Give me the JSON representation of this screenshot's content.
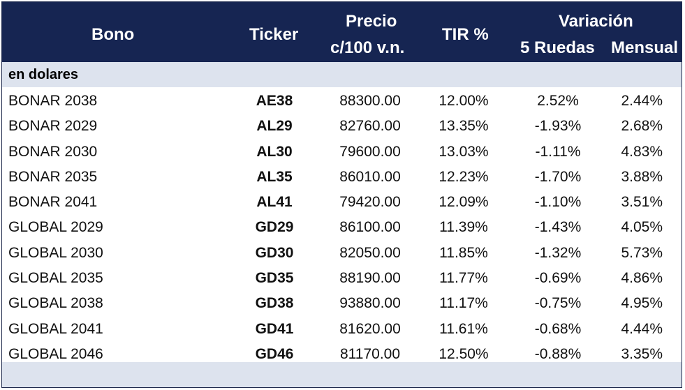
{
  "header": {
    "bono": "Bono",
    "ticker": "Ticker",
    "precio_line1": "Precio",
    "precio_line2": "c/100 v.n.",
    "tir": "TIR %",
    "variacion": "Variación",
    "ruedas": "5 Ruedas",
    "mensual": "Mensual"
  },
  "section_label": "en dolares",
  "rows": [
    {
      "bono": "BONAR 2038",
      "ticker": "AE38",
      "precio": "88300.00",
      "tir": "12.00%",
      "ruedas": "2.52%",
      "mensual": "2.44%"
    },
    {
      "bono": "BONAR 2029",
      "ticker": "AL29",
      "precio": "82760.00",
      "tir": "13.35%",
      "ruedas": "-1.93%",
      "mensual": "2.68%"
    },
    {
      "bono": "BONAR 2030",
      "ticker": "AL30",
      "precio": "79600.00",
      "tir": "13.03%",
      "ruedas": "-1.11%",
      "mensual": "4.83%"
    },
    {
      "bono": "BONAR 2035",
      "ticker": "AL35",
      "precio": "86010.00",
      "tir": "12.23%",
      "ruedas": "-1.70%",
      "mensual": "3.88%"
    },
    {
      "bono": "BONAR 2041",
      "ticker": "AL41",
      "precio": "79420.00",
      "tir": "12.09%",
      "ruedas": "-1.10%",
      "mensual": "3.51%"
    },
    {
      "bono": "GLOBAL 2029",
      "ticker": "GD29",
      "precio": "86100.00",
      "tir": "11.39%",
      "ruedas": "-1.43%",
      "mensual": "4.05%"
    },
    {
      "bono": "GLOBAL 2030",
      "ticker": "GD30",
      "precio": "82050.00",
      "tir": "11.85%",
      "ruedas": "-1.32%",
      "mensual": "5.73%"
    },
    {
      "bono": "GLOBAL 2035",
      "ticker": "GD35",
      "precio": "88190.00",
      "tir": "11.77%",
      "ruedas": "-0.69%",
      "mensual": "4.86%"
    },
    {
      "bono": "GLOBAL 2038",
      "ticker": "GD38",
      "precio": "93880.00",
      "tir": "11.17%",
      "ruedas": "-0.75%",
      "mensual": "4.95%"
    },
    {
      "bono": "GLOBAL 2041",
      "ticker": "GD41",
      "precio": "81620.00",
      "tir": "11.61%",
      "ruedas": "-0.68%",
      "mensual": "4.44%"
    },
    {
      "bono": "GLOBAL 2046",
      "ticker": "GD46",
      "precio": "81170.00",
      "tir": "12.50%",
      "ruedas": "-0.88%",
      "mensual": "3.35%"
    }
  ]
}
